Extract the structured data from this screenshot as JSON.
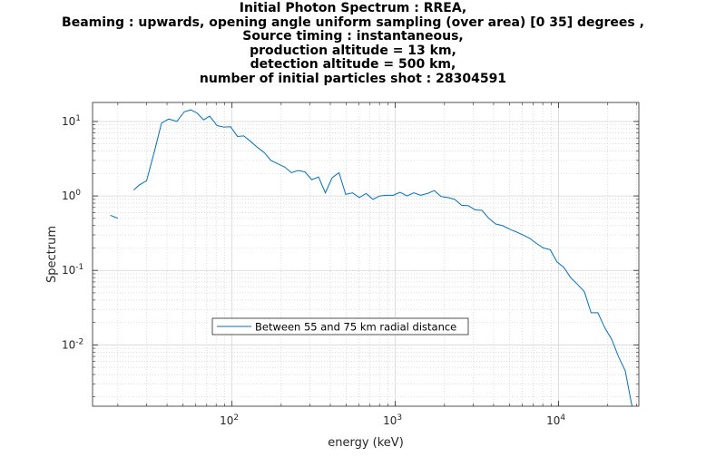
{
  "chart_data": {
    "type": "line",
    "title_lines": [
      "Initial Photon Spectrum : RREA,",
      "Beaming : upwards, opening angle uniform sampling (over area) [0 35] degrees ,",
      "Source timing : instantaneous,",
      "production altitude = 13 km,",
      "detection altitude = 500 km,",
      "number of initial particles shot : 28304591"
    ],
    "xlabel": "energy (keV)",
    "ylabel": "Spectrum",
    "xscale": "log",
    "yscale": "log",
    "xlim": [
      14,
      31000
    ],
    "ylim": [
      0.0015,
      18
    ],
    "grid": true,
    "minor_grid": true,
    "x_ticks": [
      {
        "value": 100,
        "base": "10",
        "exp": "2"
      },
      {
        "value": 1000,
        "base": "10",
        "exp": "3"
      },
      {
        "value": 10000,
        "base": "10",
        "exp": "4"
      }
    ],
    "y_ticks": [
      {
        "value": 10,
        "base": "10",
        "exp": "1"
      },
      {
        "value": 1,
        "base": "10",
        "exp": "0"
      },
      {
        "value": 0.1,
        "base": "10",
        "exp": "-1"
      },
      {
        "value": 0.01,
        "base": "10",
        "exp": "-2"
      }
    ],
    "legend_position": "lower-left",
    "series": [
      {
        "name": "Between 55 and 75 km radial distance",
        "color": "#0072BD",
        "segments": [
          {
            "x": [
              18,
              20
            ],
            "y": [
              0.55,
              0.5
            ]
          },
          {
            "x": [
              25,
              27,
              30,
              34,
              37,
              41,
              46,
              51,
              56,
              61,
              67,
              73,
              81,
              89,
              98,
              108,
              118,
              130,
              143,
              158,
              173,
              191,
              210,
              231,
              254,
              280,
              308,
              339,
              373,
              410,
              452,
              497,
              547,
              602,
              663,
              729,
              803,
              884,
              973,
              1071,
              1179,
              1298,
              1430,
              1574,
              1732,
              1907,
              2100,
              2311,
              2545,
              2801,
              3084,
              3395,
              3738,
              4115,
              4530,
              4987,
              5491,
              6045,
              6655,
              7327,
              8066,
              8880,
              9776,
              10763,
              11849,
              13045,
              14361,
              15810,
              17405,
              19162,
              21096,
              23225,
              25568,
              28149
            ],
            "y": [
              1.2,
              1.4,
              1.6,
              4.5,
              9.5,
              10.8,
              10.0,
              13.5,
              14.3,
              13.0,
              10.5,
              11.8,
              8.8,
              8.4,
              8.5,
              6.3,
              6.4,
              5.4,
              4.5,
              3.8,
              3.0,
              2.7,
              2.45,
              2.05,
              2.2,
              2.1,
              1.65,
              1.8,
              1.1,
              1.75,
              2.05,
              1.05,
              1.1,
              0.95,
              1.08,
              0.9,
              1.0,
              1.02,
              1.02,
              1.12,
              1.0,
              1.1,
              1.02,
              1.08,
              1.18,
              0.98,
              0.95,
              0.9,
              0.75,
              0.74,
              0.65,
              0.64,
              0.5,
              0.42,
              0.4,
              0.36,
              0.33,
              0.3,
              0.27,
              0.23,
              0.2,
              0.19,
              0.13,
              0.11,
              0.08,
              0.065,
              0.052,
              0.027,
              0.027,
              0.017,
              0.012,
              0.007,
              0.0045,
              0.0015
            ]
          }
        ]
      }
    ]
  }
}
